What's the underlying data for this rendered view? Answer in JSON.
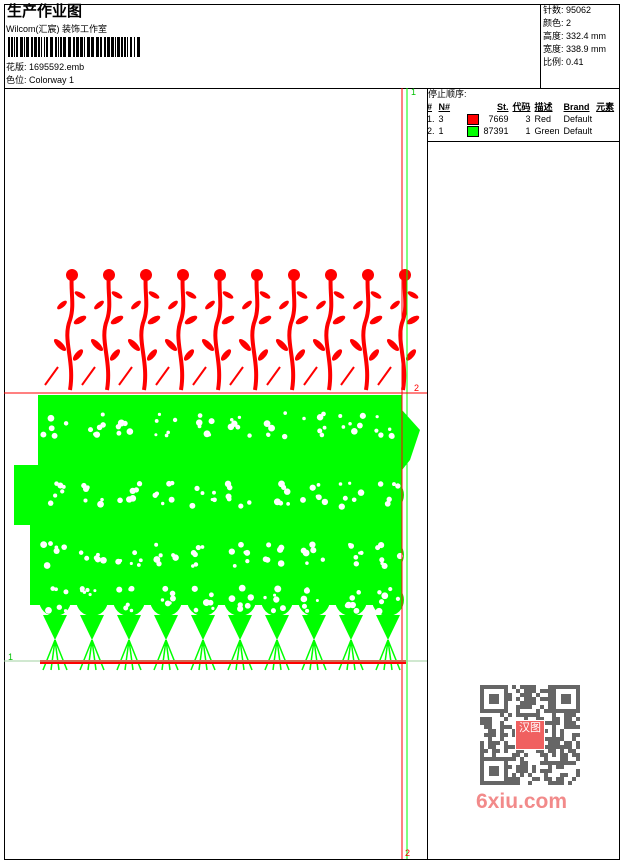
{
  "header": {
    "title": "生产作业图",
    "company": "Wilcom(汇宸) 装饰工作室",
    "design_label": "花版:",
    "design_value": "1695592.emb",
    "colorway_label": "色位:",
    "colorway_value": "Colorway 1"
  },
  "info": {
    "stitches_label": "针数:",
    "stitches": "95062",
    "colors_label": "颜色:",
    "colors": "2",
    "height_label": "高度:",
    "height": "332.4 mm",
    "width_label": "宽度:",
    "width": "338.9 mm",
    "scale_label": "比例:",
    "scale": "0.41"
  },
  "stop_sequence": {
    "title": "停止顺序:",
    "columns": [
      "#",
      "N#",
      "St.",
      "代码",
      "描述",
      "Brand",
      "元素"
    ],
    "rows": [
      {
        "idx": "1.",
        "n": "3",
        "color": "#ff0000",
        "st": "7669",
        "code": "3",
        "desc": "Red",
        "brand": "Default"
      },
      {
        "idx": "2.",
        "n": "1",
        "color": "#00ff00",
        "st": "87391",
        "code": "1",
        "desc": "Green",
        "brand": "Default"
      }
    ]
  },
  "markers": {
    "top": "1",
    "right": "2",
    "left": "1",
    "bottom": "2"
  },
  "watermark": {
    "text": "6xiu.com",
    "seal": "汉图"
  },
  "colors": {
    "red": "#ff0000",
    "green": "#00ff00"
  }
}
